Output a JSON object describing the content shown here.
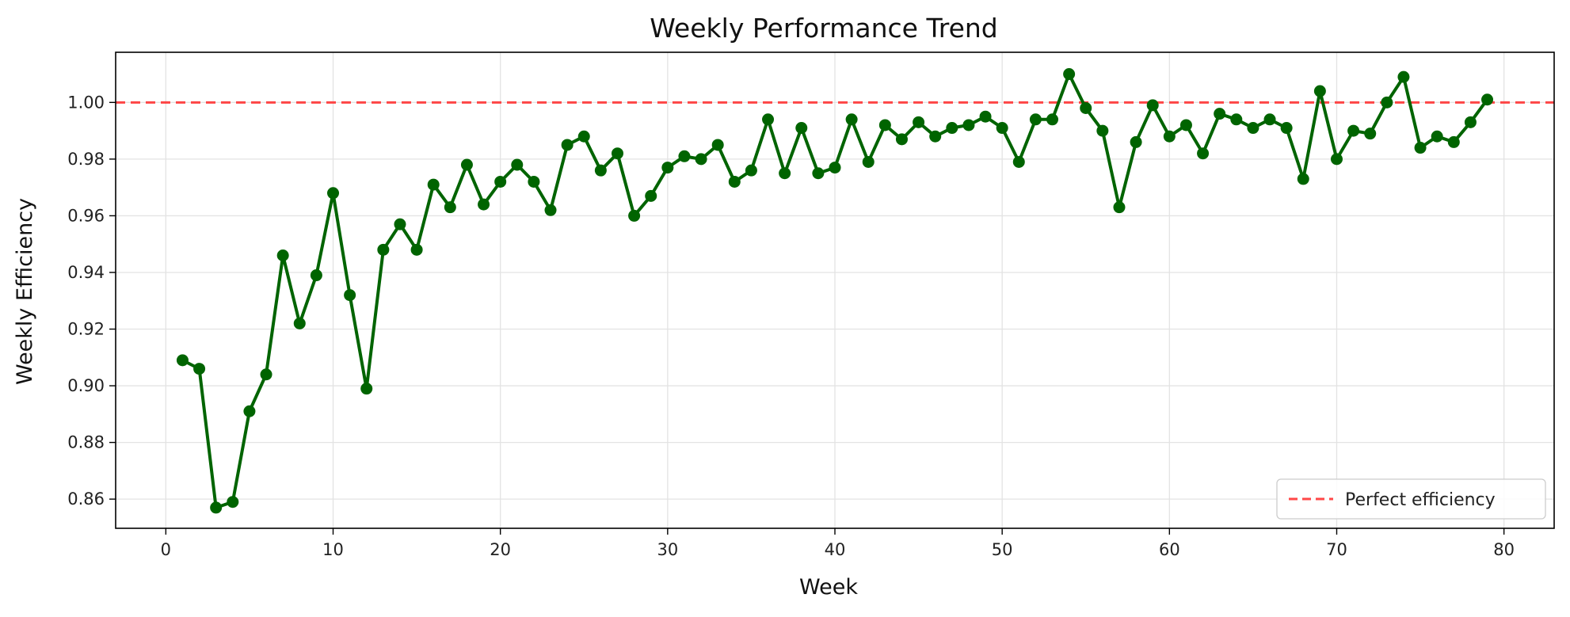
{
  "chart_data": {
    "type": "line",
    "title": "Weekly Performance Trend",
    "xlabel": "Week",
    "ylabel": "Weekly Efficiency",
    "xlim": [
      -3,
      83
    ],
    "ylim": [
      0.8497,
      1.0177
    ],
    "x_ticks": [
      0,
      10,
      20,
      30,
      40,
      50,
      60,
      70,
      80
    ],
    "y_ticks": [
      0.86,
      0.88,
      0.9,
      0.92,
      0.94,
      0.96,
      0.98,
      1.0
    ],
    "x_tick_labels": [
      "0",
      "10",
      "20",
      "30",
      "40",
      "50",
      "60",
      "70",
      "80"
    ],
    "y_tick_labels": [
      "0.86",
      "0.88",
      "0.90",
      "0.92",
      "0.94",
      "0.96",
      "0.98",
      "1.00"
    ],
    "grid": true,
    "legend_position": "bottom-right",
    "series": [
      {
        "color": "#006400",
        "marker": "circle",
        "x": [
          1,
          2,
          3,
          4,
          5,
          6,
          7,
          8,
          9,
          10,
          11,
          12,
          13,
          14,
          15,
          16,
          17,
          18,
          19,
          20,
          21,
          22,
          23,
          24,
          25,
          26,
          27,
          28,
          29,
          30,
          31,
          32,
          33,
          34,
          35,
          36,
          37,
          38,
          39,
          40,
          41,
          42,
          43,
          44,
          45,
          46,
          47,
          48,
          49,
          50,
          51,
          52,
          53,
          54,
          55,
          56,
          57,
          58,
          59,
          60,
          61,
          62,
          63,
          64,
          65,
          66,
          67,
          68,
          69,
          70,
          71,
          72,
          73,
          74,
          75,
          76,
          77,
          78,
          79
        ],
        "values": [
          0.909,
          0.906,
          0.857,
          0.859,
          0.891,
          0.904,
          0.946,
          0.922,
          0.939,
          0.968,
          0.932,
          0.899,
          0.948,
          0.957,
          0.948,
          0.971,
          0.963,
          0.978,
          0.964,
          0.972,
          0.978,
          0.972,
          0.962,
          0.985,
          0.988,
          0.976,
          0.982,
          0.96,
          0.967,
          0.977,
          0.981,
          0.98,
          0.985,
          0.972,
          0.976,
          0.994,
          0.975,
          0.991,
          0.975,
          0.977,
          0.994,
          0.979,
          0.992,
          0.987,
          0.993,
          0.988,
          0.991,
          0.992,
          0.995,
          0.991,
          0.979,
          0.994,
          0.994,
          1.01,
          0.998,
          0.99,
          0.963,
          0.986,
          0.999,
          0.988,
          0.992,
          0.982,
          0.996,
          0.994,
          0.991,
          0.994,
          0.991,
          0.973,
          1.004,
          0.98,
          0.99,
          0.989,
          1.0,
          1.009,
          0.984,
          0.988,
          0.986,
          0.993,
          1.001
        ]
      },
      {
        "name": "Perfect efficiency",
        "type": "hline",
        "color": "#ff3333",
        "style": "dashed",
        "y": 1.0
      }
    ]
  }
}
